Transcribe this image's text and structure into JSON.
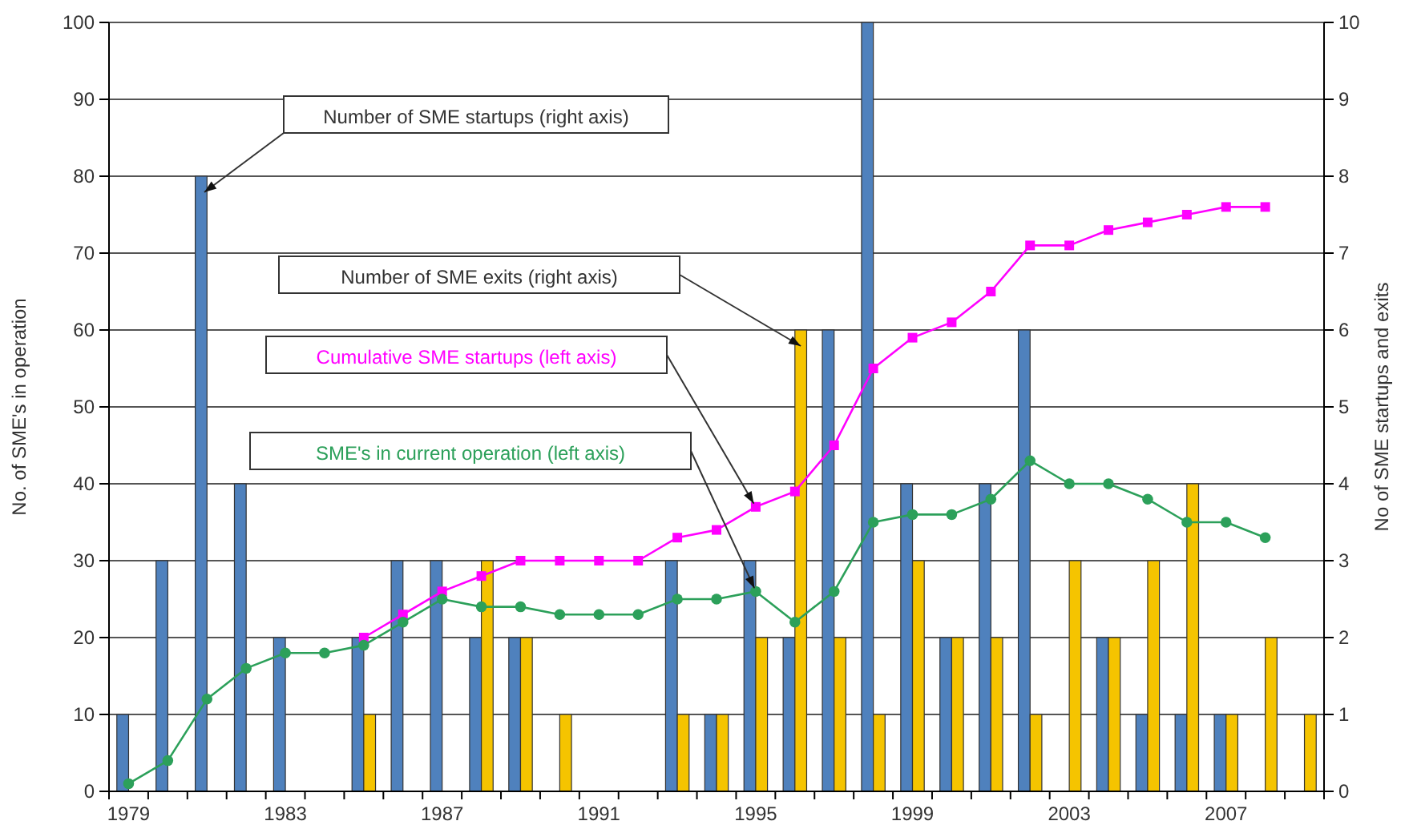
{
  "chart_data": {
    "type": "bar",
    "ylabel": "No. of SME's in operation",
    "y2label": "No of SME startups and exits",
    "categories": [
      "1979",
      null,
      null,
      null,
      "1983",
      null,
      null,
      null,
      "1987",
      null,
      null,
      null,
      "1991",
      null,
      null,
      null,
      "1995",
      null,
      null,
      null,
      "1999",
      null,
      null,
      null,
      "2003",
      null,
      null,
      null,
      "2007",
      null,
      null
    ],
    "ylim": [
      0,
      100
    ],
    "yticks": [
      0,
      10,
      20,
      30,
      40,
      50,
      60,
      70,
      80,
      90,
      100
    ],
    "y2lim": [
      0,
      10
    ],
    "y2ticks": [
      0,
      1,
      2,
      3,
      4,
      5,
      6,
      7,
      8,
      9,
      10
    ],
    "grid": "y",
    "legend": false,
    "series": [
      {
        "name": "Number of SME startups (right axis)",
        "axis": "y2",
        "color": "#4f81bd",
        "values": [
          1,
          3,
          8,
          4,
          2,
          0,
          2,
          3,
          3,
          2,
          2,
          0,
          0,
          0,
          3,
          1,
          3,
          2,
          6,
          10,
          4,
          2,
          4,
          6,
          0,
          2,
          1,
          1,
          1,
          0,
          0
        ]
      },
      {
        "name": "Number of SME exits (right axis)",
        "axis": "y2",
        "color": "#f5c400",
        "values": [
          0,
          0,
          0,
          0,
          0,
          0,
          1,
          0,
          0,
          3,
          2,
          1,
          0,
          0,
          1,
          1,
          2,
          6,
          2,
          1,
          3,
          2,
          2,
          1,
          3,
          2,
          3,
          4,
          1,
          2,
          1
        ]
      },
      {
        "name": "Cumulative SME startups (left axis)",
        "type": "line",
        "marker": "square",
        "color": "#ff00ff",
        "values": [
          null,
          null,
          null,
          null,
          null,
          null,
          20,
          23,
          26,
          28,
          30,
          30,
          30,
          30,
          33,
          34,
          37,
          39,
          45,
          55,
          59,
          61,
          65,
          71,
          71,
          73,
          74,
          75,
          76,
          76,
          null
        ]
      },
      {
        "name": "SME's in current operation (left axis)",
        "type": "line",
        "marker": "circle",
        "color": "#2ca05a",
        "values": [
          1,
          4,
          12,
          16,
          18,
          18,
          19,
          22,
          25,
          24,
          24,
          23,
          23,
          23,
          25,
          25,
          26,
          22,
          26,
          35,
          36,
          36,
          38,
          43,
          40,
          40,
          38,
          35,
          35,
          33,
          null
        ]
      }
    ]
  }
}
